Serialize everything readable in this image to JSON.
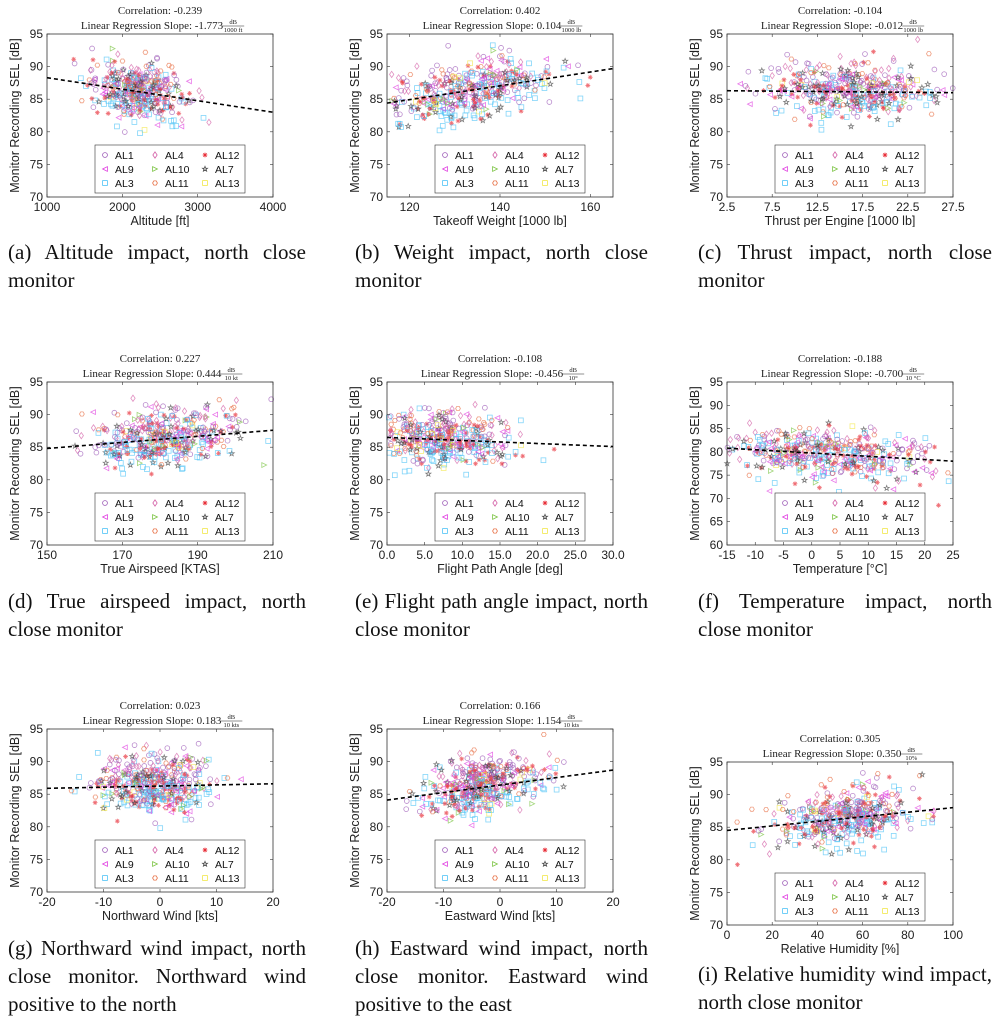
{
  "figure": {
    "legend": {
      "entries": [
        {
          "label": "AL1",
          "marker": "circle",
          "color": "#9b59b6"
        },
        {
          "label": "AL4",
          "marker": "diamond",
          "color": "#d462a8"
        },
        {
          "label": "AL12",
          "marker": "asterisk",
          "color": "#e8303a"
        },
        {
          "label": "AL9",
          "marker": "triangle-left",
          "color": "#e040e0"
        },
        {
          "label": "AL10",
          "marker": "triangle-right",
          "color": "#7cc444"
        },
        {
          "label": "AL7",
          "marker": "pentagram",
          "color": "#444444"
        },
        {
          "label": "AL3",
          "marker": "square",
          "color": "#4fc3f7"
        },
        {
          "label": "AL11",
          "marker": "hexagon",
          "color": "#e8744a"
        },
        {
          "label": "AL13",
          "marker": "square",
          "color": "#f2e74a"
        }
      ]
    },
    "ylabel": "Monitor Recording SEL [dB]"
  },
  "chart_data": [
    {
      "id": "a",
      "type": "scatter",
      "title_line1": "Correlation: -0.239",
      "title_line2": "Linear Regression Slope: -1.773",
      "slope_unit_num": "dB",
      "slope_unit_den": "1000 ft",
      "correlation": -0.239,
      "slope": -1.773,
      "xlabel": "Altitude [ft]",
      "ylabel": "Monitor Recording SEL [dB]",
      "xlim": [
        1000,
        4000
      ],
      "ylim": [
        70,
        95
      ],
      "xticks": [
        "1000",
        "2000",
        "3000",
        "4000"
      ],
      "xtick_values": [
        1000,
        2000,
        3000,
        4000
      ],
      "yticks": [
        "70",
        "75",
        "80",
        "85",
        "90",
        "95"
      ],
      "fit_line": {
        "x": [
          1000,
          4000
        ],
        "y": [
          88.3,
          83.0
        ]
      },
      "cloud": {
        "x_center": 2250,
        "x_spread": 300,
        "y_center": 86.0,
        "y_spread": 2.2,
        "n": 420
      },
      "caption": "(a) Altitude impact, north close monitor"
    },
    {
      "id": "b",
      "type": "scatter",
      "title_line1": "Correlation: 0.402",
      "title_line2": "Linear Regression Slope: 0.104",
      "slope_unit_num": "dB",
      "slope_unit_den": "1000 lb",
      "correlation": 0.402,
      "slope": 0.104,
      "xlabel": "Takeoff Weight [1000 lb]",
      "ylabel": "Monitor Recording SEL [dB]",
      "xlim": [
        115,
        165
      ],
      "ylim": [
        70,
        95
      ],
      "xticks": [
        "120",
        "140",
        "160"
      ],
      "xtick_values": [
        120,
        140,
        160
      ],
      "yticks": [
        "70",
        "75",
        "80",
        "85",
        "90",
        "95"
      ],
      "fit_line": {
        "x": [
          115,
          165
        ],
        "y": [
          84.4,
          89.7
        ]
      },
      "cloud": {
        "x_center": 133,
        "x_spread": 9,
        "y_center": 86.3,
        "y_spread": 2.2,
        "n": 450
      },
      "caption": "(b) Weight impact, north close monitor"
    },
    {
      "id": "c",
      "type": "scatter",
      "title_line1": "Correlation: -0.104",
      "title_line2": "Linear Regression Slope: -0.012",
      "slope_unit_num": "dB",
      "slope_unit_den": "1000 lb",
      "correlation": -0.104,
      "slope": -0.012,
      "xlabel": "Thrust per Engine [1000 lb]",
      "ylabel": "Monitor Recording SEL [dB]",
      "xlim": [
        2.5,
        27.5
      ],
      "ylim": [
        70,
        95
      ],
      "xticks": [
        "2.5",
        "7.5",
        "12.5",
        "17.5",
        "22.5",
        "27.5"
      ],
      "xtick_values": [
        2.5,
        7.5,
        12.5,
        17.5,
        22.5,
        27.5
      ],
      "yticks": [
        "70",
        "75",
        "80",
        "85",
        "90",
        "95"
      ],
      "fit_line": {
        "x": [
          2.5,
          27.5
        ],
        "y": [
          86.3,
          86.0
        ]
      },
      "cloud": {
        "x_center": 16,
        "x_spread": 5,
        "y_center": 86.2,
        "y_spread": 2.0,
        "n": 460
      },
      "caption": "(c) Thrust impact, north close monitor"
    },
    {
      "id": "d",
      "type": "scatter",
      "title_line1": "Correlation: 0.227",
      "title_line2": "Linear Regression Slope: 0.444",
      "slope_unit_num": "dB",
      "slope_unit_den": "10 kt",
      "correlation": 0.227,
      "slope": 0.444,
      "xlabel": "True Airspeed [KTAS]",
      "ylabel": "Monitor Recording SEL [dB]",
      "xlim": [
        150,
        210
      ],
      "ylim": [
        70,
        95
      ],
      "xticks": [
        "150",
        "170",
        "190",
        "210"
      ],
      "xtick_values": [
        150,
        170,
        190,
        210
      ],
      "yticks": [
        "70",
        "75",
        "80",
        "85",
        "90",
        "95"
      ],
      "fit_line": {
        "x": [
          150,
          210
        ],
        "y": [
          84.8,
          87.6
        ]
      },
      "cloud": {
        "x_center": 181,
        "x_spread": 10,
        "y_center": 86.2,
        "y_spread": 2.2,
        "n": 450
      },
      "caption": "(d) True airspeed impact, north close monitor"
    },
    {
      "id": "e",
      "type": "scatter",
      "title_line1": "Correlation: -0.108",
      "title_line2": "Linear Regression Slope: -0.456",
      "slope_unit_num": "dB",
      "slope_unit_den": "10°",
      "correlation": -0.108,
      "slope": -0.456,
      "xlabel": "Flight Path Angle [deg]",
      "ylabel": "Monitor Recording SEL [dB]",
      "xlim": [
        0,
        30
      ],
      "ylim": [
        70,
        95
      ],
      "xticks": [
        "0.0",
        "5.0",
        "10.0",
        "15.0",
        "20.0",
        "25.0",
        "30.0"
      ],
      "xtick_values": [
        0,
        5,
        10,
        15,
        20,
        25,
        30
      ],
      "yticks": [
        "70",
        "75",
        "80",
        "85",
        "90",
        "95"
      ],
      "fit_line": {
        "x": [
          0,
          30
        ],
        "y": [
          86.5,
          85.1
        ]
      },
      "cloud": {
        "x_center": 7,
        "x_spread": 4.5,
        "y_center": 86.2,
        "y_spread": 2.0,
        "n": 450
      },
      "caption": "(e) Flight path angle impact, north close monitor"
    },
    {
      "id": "f",
      "type": "scatter",
      "title_line1": "Correlation: -0.188",
      "title_line2": "Linear Regression Slope: -0.700",
      "slope_unit_num": "dB",
      "slope_unit_den": "10 °C",
      "correlation": -0.188,
      "slope": -0.7,
      "xlabel": "Temperature [°C]",
      "ylabel": "Monitor Recording SEL [dB]",
      "xlim": [
        -15,
        25
      ],
      "ylim": [
        60,
        95
      ],
      "xticks": [
        "-15",
        "-10",
        "-5",
        "0",
        "5",
        "10",
        "15",
        "20",
        "25"
      ],
      "xtick_values": [
        -15,
        -10,
        -5,
        0,
        5,
        10,
        15,
        20,
        25
      ],
      "yticks": [
        "60",
        "65",
        "70",
        "75",
        "80",
        "85",
        "90",
        "95"
      ],
      "fit_line": {
        "x": [
          -15,
          25
        ],
        "y": [
          80.8,
          78.0
        ]
      },
      "cloud": {
        "x_center": 3,
        "x_spread": 9,
        "y_center": 79.0,
        "y_spread": 2.8,
        "n": 480
      },
      "caption": "(f) Temperature impact, north close monitor"
    },
    {
      "id": "g",
      "type": "scatter",
      "title_line1": "Correlation: 0.023",
      "title_line2": "Linear Regression Slope: 0.183",
      "slope_unit_num": "dB",
      "slope_unit_den": "10 kts",
      "correlation": 0.023,
      "slope": 0.183,
      "xlabel": "Northward Wind [kts]",
      "ylabel": "Monitor Recording SEL [dB]",
      "xlim": [
        -20,
        20
      ],
      "ylim": [
        70,
        95
      ],
      "xticks": [
        "-20",
        "-10",
        "0",
        "10",
        "20"
      ],
      "xtick_values": [
        -20,
        -10,
        0,
        10,
        20
      ],
      "yticks": [
        "70",
        "75",
        "80",
        "85",
        "90",
        "95"
      ],
      "fit_line": {
        "x": [
          -20,
          20
        ],
        "y": [
          85.9,
          86.6
        ]
      },
      "cloud": {
        "x_center": -1,
        "x_spread": 5,
        "y_center": 86.2,
        "y_spread": 2.1,
        "n": 450
      },
      "caption": "(g) Northward wind impact, north close monitor. Northward wind positive to the north"
    },
    {
      "id": "h",
      "type": "scatter",
      "title_line1": "Correlation: 0.166",
      "title_line2": "Linear Regression Slope: 1.154",
      "slope_unit_num": "dB",
      "slope_unit_den": "10 kts",
      "correlation": 0.166,
      "slope": 1.154,
      "xlabel": "Eastward Wind [kts]",
      "ylabel": "Monitor Recording SEL [dB]",
      "xlim": [
        -20,
        20
      ],
      "ylim": [
        70,
        95
      ],
      "xticks": [
        "-20",
        "-10",
        "0",
        "10",
        "20"
      ],
      "xtick_values": [
        -20,
        -10,
        0,
        10,
        20
      ],
      "yticks": [
        "70",
        "75",
        "80",
        "85",
        "90",
        "95"
      ],
      "fit_line": {
        "x": [
          -20,
          20
        ],
        "y": [
          84.1,
          88.7
        ]
      },
      "cloud": {
        "x_center": -3,
        "x_spread": 5.5,
        "y_center": 86.1,
        "y_spread": 2.1,
        "n": 450
      },
      "caption": "(h) Eastward wind impact, north close monitor. Eastward wind positive to the east"
    },
    {
      "id": "i",
      "type": "scatter",
      "title_line1": "Correlation: 0.305",
      "title_line2": "Linear Regression Slope: 0.350",
      "slope_unit_num": "dB",
      "slope_unit_den": "10%",
      "correlation": 0.305,
      "slope": 0.35,
      "xlabel": "Relative Humidity [%]",
      "ylabel": "Monitor Recording SEL [dB]",
      "xlim": [
        0,
        100
      ],
      "ylim": [
        70,
        95
      ],
      "xticks": [
        "0",
        "20",
        "40",
        "60",
        "80",
        "100"
      ],
      "xtick_values": [
        0,
        20,
        40,
        60,
        80,
        100
      ],
      "yticks": [
        "70",
        "75",
        "80",
        "85",
        "90",
        "95"
      ],
      "fit_line": {
        "x": [
          0,
          100
        ],
        "y": [
          84.5,
          88.0
        ]
      },
      "cloud": {
        "x_center": 53,
        "x_spread": 15,
        "y_center": 86.3,
        "y_spread": 2.1,
        "n": 450
      },
      "caption": "(i) Relative humidity wind impact, north close monitor"
    }
  ]
}
